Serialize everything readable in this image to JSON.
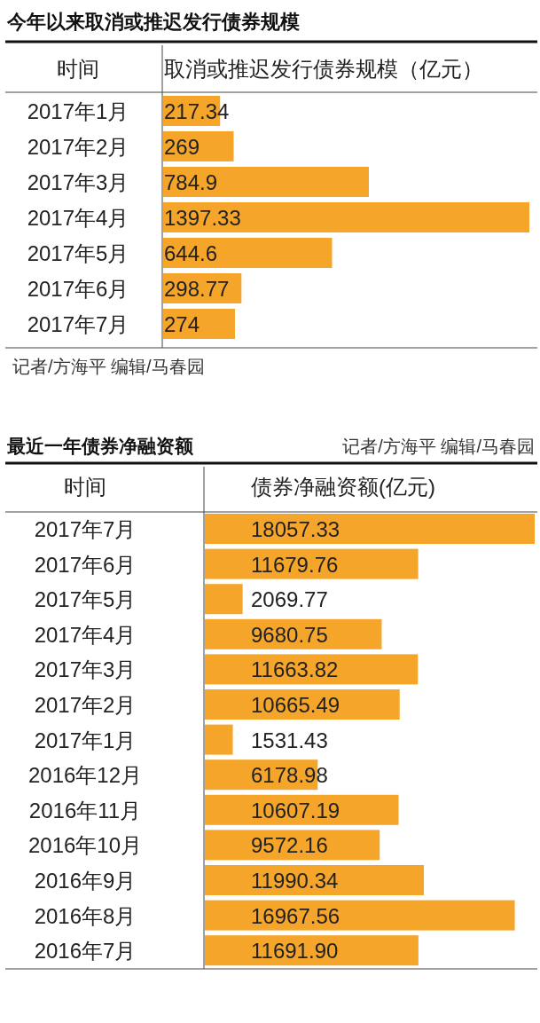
{
  "chart_data": [
    {
      "type": "bar",
      "orientation": "horizontal",
      "title": "今年以来取消或推迟发行债券规模",
      "ylabel": "时间",
      "xlabel": "取消或推迟发行债券规模（亿元）",
      "categories": [
        "2017年1月",
        "2017年2月",
        "2017年3月",
        "2017年4月",
        "2017年5月",
        "2017年6月",
        "2017年7月"
      ],
      "values": [
        217.34,
        269,
        784.9,
        1397.33,
        644.6,
        298.77,
        274
      ],
      "color": "#f5a52a",
      "data_labels": true,
      "annotations": [
        "记者/方海平  编辑/马春园"
      ]
    },
    {
      "type": "bar",
      "orientation": "horizontal",
      "title": "最近一年债券净融资额",
      "ylabel": "时间",
      "xlabel": "债券净融资额(亿元)",
      "categories": [
        "2017年7月",
        "2017年6月",
        "2017年5月",
        "2017年4月",
        "2017年3月",
        "2017年2月",
        "2017年1月",
        "2016年12月",
        "2016年11月",
        "2016年10月",
        "2016年9月",
        "2016年8月",
        "2016年7月"
      ],
      "values": [
        18057.33,
        11679.76,
        2069.77,
        9680.75,
        11663.82,
        10665.49,
        1531.43,
        6178.98,
        10607.19,
        9572.16,
        11990.34,
        16967.56,
        11691.9
      ],
      "value_labels": [
        "18057.33",
        "11679.76",
        "2069.77",
        "9680.75",
        "11663.82",
        "10665.49",
        "1531.43",
        "6178.98",
        "10607.19",
        "9572.16",
        "11990.34",
        "16967.56",
        "11691.90"
      ],
      "color": "#f5a52a",
      "annotations": [
        "记者/方海平  编辑/马春园"
      ]
    }
  ]
}
